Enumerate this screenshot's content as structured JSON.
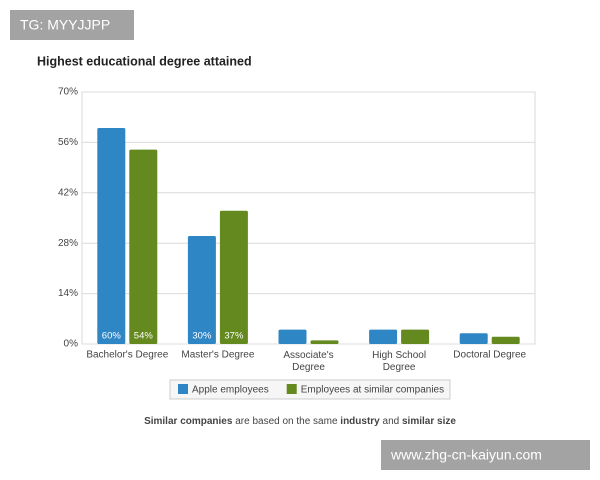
{
  "chart_data": {
    "type": "bar",
    "title": "Highest educational degree attained",
    "categories": [
      "Bachelor's Degree",
      "Master's Degree",
      "Associate's\nDegree",
      "High School\nDegree",
      "Doctoral Degree"
    ],
    "series": [
      {
        "name": "Apple employees",
        "color": "#2f86c4",
        "values": [
          60,
          30,
          4,
          4,
          3
        ],
        "value_labels": [
          "60%",
          "30%",
          null,
          null,
          null
        ]
      },
      {
        "name": "Employees at similar companies",
        "color": "#64891f",
        "values": [
          54,
          37,
          1,
          4,
          2
        ],
        "value_labels": [
          "54%",
          "37%",
          null,
          null,
          null
        ]
      }
    ],
    "ylim": [
      0,
      70
    ],
    "yticks": [
      {
        "value": 0,
        "label": "0%"
      },
      {
        "value": 14,
        "label": "14%"
      },
      {
        "value": 28,
        "label": "28%"
      },
      {
        "value": 42,
        "label": "42%"
      },
      {
        "value": 56,
        "label": "56%"
      },
      {
        "value": 70,
        "label": "70%"
      }
    ],
    "grid": true,
    "footnote": [
      "Similar companies",
      " are based on the same ",
      "industry",
      " and ",
      "similar size"
    ]
  },
  "watermarks": [
    "TG: MYYJJPP",
    "www.zhg-cn-kaiyun.com"
  ]
}
